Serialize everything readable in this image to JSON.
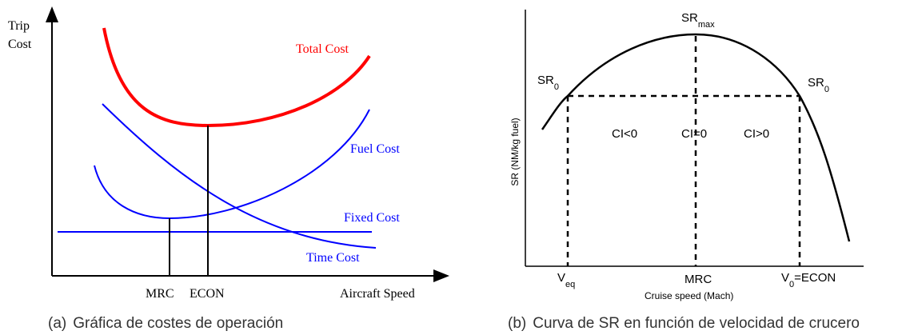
{
  "left": {
    "y_label_line1": "Trip",
    "y_label_line2": "Cost",
    "total_cost": "Total Cost",
    "fuel_cost": "Fuel Cost",
    "fixed_cost": "Fixed Cost",
    "time_cost": "Time Cost",
    "mrc": "MRC",
    "econ": "ECON",
    "x_label": "Aircraft Speed",
    "caption_label": "(a)",
    "caption_text": "Gráfica de costes de operación"
  },
  "right": {
    "sr_max": {
      "main": "SR",
      "sub": "max"
    },
    "sr0_left": {
      "main": "SR",
      "sub": "0"
    },
    "sr0_right": {
      "main": "SR",
      "sub": "0"
    },
    "ci_neg": "CI<0",
    "ci_zero": "CI=0",
    "ci_pos": "CI>0",
    "y_label": "SR (NM/kg fuel)",
    "veq": {
      "main": "V",
      "sub": "eq"
    },
    "mrc": "MRC",
    "v0": {
      "main": "V",
      "sub": "0",
      "rest": "=ECON"
    },
    "x_label": "Cruise speed (Mach)",
    "caption_label": "(b)",
    "caption_text": "Curva de SR en función de velocidad de crucero"
  }
}
